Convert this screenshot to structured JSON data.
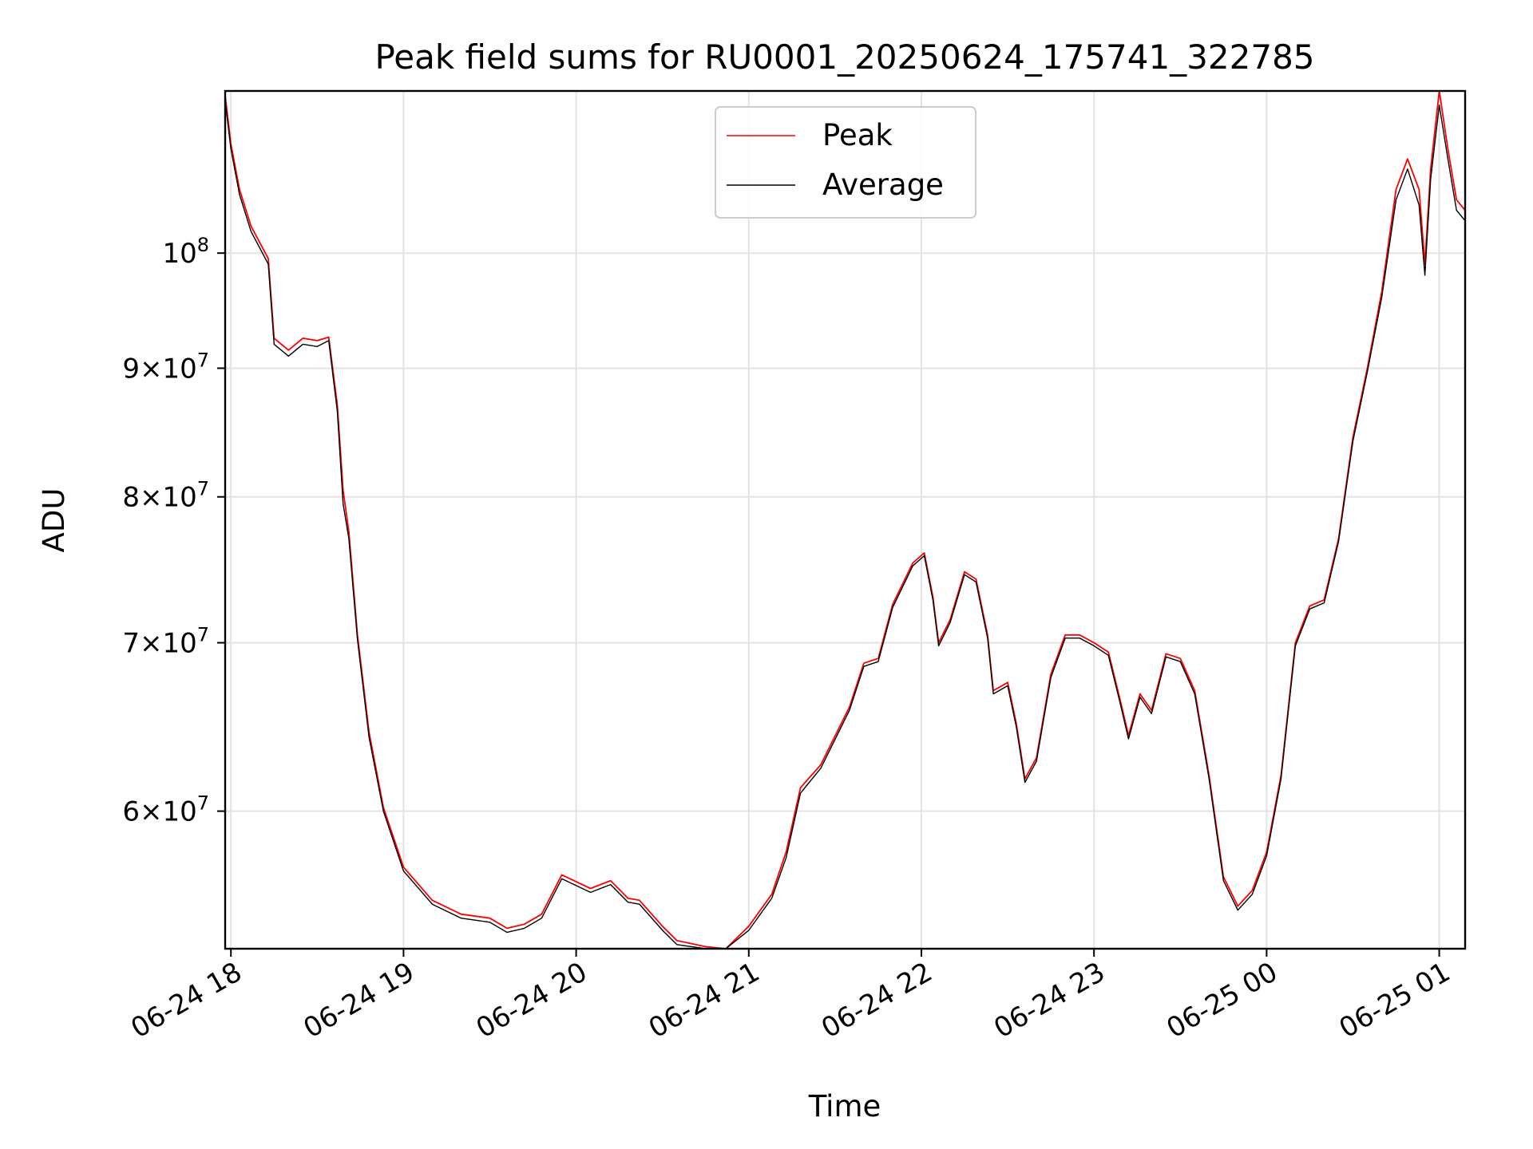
{
  "chart_data": {
    "type": "line",
    "title": "Peak field sums for RU0001_20250624_175741_322785",
    "xlabel": "Time",
    "ylabel": "ADU",
    "yscale": "log",
    "grid": true,
    "legend_position": "top-center",
    "x_ticks": [
      "06-24 18",
      "06-24 19",
      "06-24 20",
      "06-24 21",
      "06-24 22",
      "06-24 23",
      "06-25 00",
      "06-25 01"
    ],
    "y_ticks": [
      {
        "value": 60000000,
        "label": "6 × 10^7",
        "mant": "6",
        "exp": "7"
      },
      {
        "value": 70000000,
        "label": "7 × 10^7",
        "mant": "7",
        "exp": "7"
      },
      {
        "value": 80000000,
        "label": "8 × 10^7",
        "mant": "8",
        "exp": "7"
      },
      {
        "value": 90000000,
        "label": "9 × 10^7",
        "mant": "9",
        "exp": "7"
      },
      {
        "value": 100000000,
        "label": "10^8",
        "mant": "",
        "exp": "8"
      }
    ],
    "xlim": [
      "2025-06-24 17:58",
      "2025-06-25 01:09"
    ],
    "ylim": [
      52900000,
      116000000
    ],
    "series": [
      {
        "name": "Peak",
        "color": "#ff0000",
        "points": [
          [
            "2025-06-24 17:58",
            115500000
          ],
          [
            "2025-06-24 18:00",
            110500000
          ],
          [
            "2025-06-24 18:03",
            106000000
          ],
          [
            "2025-06-24 18:07",
            102500000
          ],
          [
            "2025-06-24 18:13",
            99500000
          ],
          [
            "2025-06-24 18:15",
            92500000
          ],
          [
            "2025-06-24 18:20",
            91500000
          ],
          [
            "2025-06-24 18:25",
            92500000
          ],
          [
            "2025-06-24 18:30",
            92300000
          ],
          [
            "2025-06-24 18:34",
            92600000
          ],
          [
            "2025-06-24 18:37",
            87000000
          ],
          [
            "2025-06-24 18:39",
            80500000
          ],
          [
            "2025-06-24 18:41",
            77500000
          ],
          [
            "2025-06-24 18:44",
            70500000
          ],
          [
            "2025-06-24 18:48",
            64500000
          ],
          [
            "2025-06-24 18:53",
            60200000
          ],
          [
            "2025-06-24 19:00",
            57000000
          ],
          [
            "2025-06-24 19:10",
            55300000
          ],
          [
            "2025-06-24 19:20",
            54600000
          ],
          [
            "2025-06-24 19:30",
            54400000
          ],
          [
            "2025-06-24 19:36",
            53900000
          ],
          [
            "2025-06-24 19:42",
            54100000
          ],
          [
            "2025-06-24 19:48",
            54600000
          ],
          [
            "2025-06-24 19:55",
            56600000
          ],
          [
            "2025-06-24 20:05",
            55900000
          ],
          [
            "2025-06-24 20:12",
            56300000
          ],
          [
            "2025-06-24 20:18",
            55400000
          ],
          [
            "2025-06-24 20:22",
            55300000
          ],
          [
            "2025-06-24 20:30",
            54000000
          ],
          [
            "2025-06-24 20:35",
            53300000
          ],
          [
            "2025-06-24 20:45",
            53000000
          ],
          [
            "2025-06-24 20:52",
            52900000
          ],
          [
            "2025-06-24 21:00",
            54000000
          ],
          [
            "2025-06-24 21:08",
            55600000
          ],
          [
            "2025-06-24 21:13",
            57800000
          ],
          [
            "2025-06-24 21:18",
            61300000
          ],
          [
            "2025-06-24 21:25",
            62600000
          ],
          [
            "2025-06-24 21:35",
            66000000
          ],
          [
            "2025-06-24 21:40",
            68700000
          ],
          [
            "2025-06-24 21:45",
            69000000
          ],
          [
            "2025-06-24 21:50",
            72500000
          ],
          [
            "2025-06-24 21:57",
            75300000
          ],
          [
            "2025-06-24 22:01",
            76000000
          ],
          [
            "2025-06-24 22:04",
            73000000
          ],
          [
            "2025-06-24 22:06",
            70000000
          ],
          [
            "2025-06-24 22:10",
            71500000
          ],
          [
            "2025-06-24 22:15",
            74700000
          ],
          [
            "2025-06-24 22:19",
            74200000
          ],
          [
            "2025-06-24 22:23",
            70500000
          ],
          [
            "2025-06-24 22:25",
            67000000
          ],
          [
            "2025-06-24 22:30",
            67500000
          ],
          [
            "2025-06-24 22:33",
            65000000
          ],
          [
            "2025-06-24 22:36",
            61800000
          ],
          [
            "2025-06-24 22:40",
            63000000
          ],
          [
            "2025-06-24 22:45",
            68000000
          ],
          [
            "2025-06-24 22:50",
            70500000
          ],
          [
            "2025-06-24 22:55",
            70500000
          ],
          [
            "2025-06-24 23:00",
            70000000
          ],
          [
            "2025-06-24 23:05",
            69400000
          ],
          [
            "2025-06-24 23:09",
            66500000
          ],
          [
            "2025-06-24 23:12",
            64300000
          ],
          [
            "2025-06-24 23:16",
            66800000
          ],
          [
            "2025-06-24 23:20",
            65800000
          ],
          [
            "2025-06-24 23:25",
            69300000
          ],
          [
            "2025-06-24 23:30",
            69000000
          ],
          [
            "2025-06-24 23:35",
            67000000
          ],
          [
            "2025-06-24 23:40",
            62000000
          ],
          [
            "2025-06-24 23:45",
            56500000
          ],
          [
            "2025-06-24 23:50",
            55000000
          ],
          [
            "2025-06-24 23:55",
            55800000
          ],
          [
            "2025-06-25 00:00",
            57800000
          ],
          [
            "2025-06-25 00:05",
            62000000
          ],
          [
            "2025-06-25 00:10",
            70000000
          ],
          [
            "2025-06-25 00:15",
            72400000
          ],
          [
            "2025-06-25 00:20",
            72800000
          ],
          [
            "2025-06-25 00:25",
            77000000
          ],
          [
            "2025-06-25 00:30",
            84500000
          ],
          [
            "2025-06-25 00:35",
            90000000
          ],
          [
            "2025-06-25 00:40",
            96500000
          ],
          [
            "2025-06-25 00:45",
            106000000
          ],
          [
            "2025-06-25 00:49",
            109000000
          ],
          [
            "2025-06-25 00:53",
            106000000
          ],
          [
            "2025-06-25 00:55",
            99000000
          ],
          [
            "2025-06-25 00:57",
            108000000
          ],
          [
            "2025-06-25 01:00",
            116000000
          ],
          [
            "2025-06-25 01:03",
            110000000
          ],
          [
            "2025-06-25 01:06",
            105000000
          ],
          [
            "2025-06-25 01:09",
            104000000
          ]
        ]
      },
      {
        "name": "Average",
        "color": "#000000",
        "points": [
          [
            "2025-06-24 17:58",
            115000000
          ],
          [
            "2025-06-24 18:00",
            110000000
          ],
          [
            "2025-06-24 18:03",
            105500000
          ],
          [
            "2025-06-24 18:07",
            102000000
          ],
          [
            "2025-06-24 18:13",
            99000000
          ],
          [
            "2025-06-24 18:15",
            92000000
          ],
          [
            "2025-06-24 18:20",
            91000000
          ],
          [
            "2025-06-24 18:25",
            92000000
          ],
          [
            "2025-06-24 18:30",
            91800000
          ],
          [
            "2025-06-24 18:34",
            92300000
          ],
          [
            "2025-06-24 18:37",
            86500000
          ],
          [
            "2025-06-24 18:39",
            79500000
          ],
          [
            "2025-06-24 18:41",
            77000000
          ],
          [
            "2025-06-24 18:44",
            70200000
          ],
          [
            "2025-06-24 18:48",
            64200000
          ],
          [
            "2025-06-24 18:53",
            60000000
          ],
          [
            "2025-06-24 19:00",
            56800000
          ],
          [
            "2025-06-24 19:10",
            55100000
          ],
          [
            "2025-06-24 19:20",
            54400000
          ],
          [
            "2025-06-24 19:30",
            54200000
          ],
          [
            "2025-06-24 19:36",
            53700000
          ],
          [
            "2025-06-24 19:42",
            53900000
          ],
          [
            "2025-06-24 19:48",
            54400000
          ],
          [
            "2025-06-24 19:55",
            56400000
          ],
          [
            "2025-06-24 20:05",
            55700000
          ],
          [
            "2025-06-24 20:12",
            56100000
          ],
          [
            "2025-06-24 20:18",
            55200000
          ],
          [
            "2025-06-24 20:22",
            55100000
          ],
          [
            "2025-06-24 20:30",
            53800000
          ],
          [
            "2025-06-24 20:35",
            53100000
          ],
          [
            "2025-06-24 20:45",
            52900000
          ],
          [
            "2025-06-24 20:52",
            52900000
          ],
          [
            "2025-06-24 21:00",
            53800000
          ],
          [
            "2025-06-24 21:08",
            55400000
          ],
          [
            "2025-06-24 21:13",
            57500000
          ],
          [
            "2025-06-24 21:18",
            61000000
          ],
          [
            "2025-06-24 21:25",
            62400000
          ],
          [
            "2025-06-24 21:35",
            65800000
          ],
          [
            "2025-06-24 21:40",
            68500000
          ],
          [
            "2025-06-24 21:45",
            68800000
          ],
          [
            "2025-06-24 21:50",
            72300000
          ],
          [
            "2025-06-24 21:57",
            75100000
          ],
          [
            "2025-06-24 22:01",
            75800000
          ],
          [
            "2025-06-24 22:04",
            72800000
          ],
          [
            "2025-06-24 22:06",
            69800000
          ],
          [
            "2025-06-24 22:10",
            71300000
          ],
          [
            "2025-06-24 22:15",
            74500000
          ],
          [
            "2025-06-24 22:19",
            74000000
          ],
          [
            "2025-06-24 22:23",
            70300000
          ],
          [
            "2025-06-24 22:25",
            66800000
          ],
          [
            "2025-06-24 22:30",
            67300000
          ],
          [
            "2025-06-24 22:33",
            64800000
          ],
          [
            "2025-06-24 22:36",
            61600000
          ],
          [
            "2025-06-24 22:40",
            62800000
          ],
          [
            "2025-06-24 22:45",
            67800000
          ],
          [
            "2025-06-24 22:50",
            70300000
          ],
          [
            "2025-06-24 22:55",
            70300000
          ],
          [
            "2025-06-24 23:00",
            69800000
          ],
          [
            "2025-06-24 23:05",
            69200000
          ],
          [
            "2025-06-24 23:09",
            66300000
          ],
          [
            "2025-06-24 23:12",
            64100000
          ],
          [
            "2025-06-24 23:16",
            66600000
          ],
          [
            "2025-06-24 23:20",
            65600000
          ],
          [
            "2025-06-24 23:25",
            69100000
          ],
          [
            "2025-06-24 23:30",
            68800000
          ],
          [
            "2025-06-24 23:35",
            66800000
          ],
          [
            "2025-06-24 23:40",
            61800000
          ],
          [
            "2025-06-24 23:45",
            56300000
          ],
          [
            "2025-06-24 23:50",
            54800000
          ],
          [
            "2025-06-24 23:55",
            55600000
          ],
          [
            "2025-06-25 00:00",
            57600000
          ],
          [
            "2025-06-25 00:05",
            61800000
          ],
          [
            "2025-06-25 00:10",
            69800000
          ],
          [
            "2025-06-25 00:15",
            72200000
          ],
          [
            "2025-06-25 00:20",
            72600000
          ],
          [
            "2025-06-25 00:25",
            76800000
          ],
          [
            "2025-06-25 00:30",
            84200000
          ],
          [
            "2025-06-25 00:35",
            89700000
          ],
          [
            "2025-06-25 00:40",
            96000000
          ],
          [
            "2025-06-25 00:45",
            105000000
          ],
          [
            "2025-06-25 00:49",
            108000000
          ],
          [
            "2025-06-25 00:53",
            104500000
          ],
          [
            "2025-06-25 00:55",
            98000000
          ],
          [
            "2025-06-25 00:57",
            107000000
          ],
          [
            "2025-06-25 01:00",
            114500000
          ],
          [
            "2025-06-25 01:03",
            109000000
          ],
          [
            "2025-06-25 01:06",
            104000000
          ],
          [
            "2025-06-25 01:09",
            103000000
          ]
        ]
      }
    ]
  }
}
